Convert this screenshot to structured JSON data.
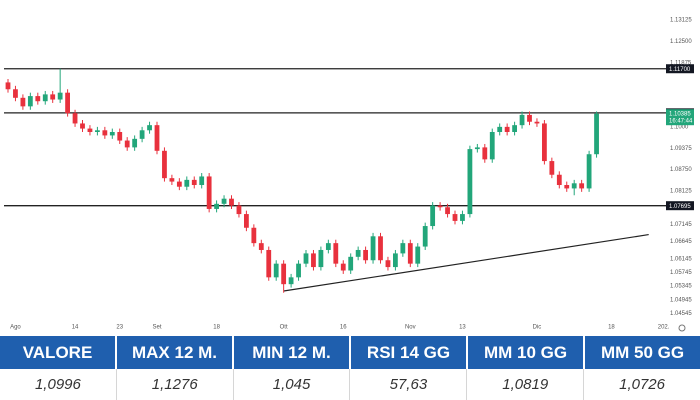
{
  "chart_data": {
    "type": "candlestick",
    "categories": [
      null,
      "Ago",
      null,
      null,
      null,
      null,
      null,
      null,
      null,
      "14",
      null,
      null,
      null,
      null,
      null,
      "23",
      null,
      null,
      null,
      null,
      "Set",
      null,
      null,
      null,
      null,
      null,
      null,
      null,
      "18",
      null,
      null,
      null,
      null,
      null,
      null,
      null,
      null,
      "Ott",
      null,
      null,
      null,
      null,
      null,
      null,
      null,
      "16",
      null,
      null,
      null,
      null,
      null,
      null,
      null,
      null,
      "Nov",
      null,
      null,
      null,
      null,
      null,
      null,
      "13",
      null,
      null,
      null,
      null,
      null,
      null,
      null,
      null,
      null,
      "Dic",
      null,
      null,
      null,
      null,
      null,
      null,
      null,
      null,
      null,
      "18",
      null,
      null,
      null,
      null,
      null,
      null,
      "202."
    ],
    "open": [
      1.113,
      1.111,
      1.1085,
      1.106,
      1.109,
      1.1075,
      1.1095,
      1.108,
      1.11,
      1.104,
      1.101,
      1.0995,
      1.0985,
      1.099,
      1.0975,
      1.0985,
      1.096,
      1.094,
      1.0965,
      1.099,
      1.1005,
      1.093,
      1.085,
      1.084,
      1.0825,
      1.0845,
      1.083,
      1.0855,
      1.076,
      1.0775,
      1.079,
      1.077,
      1.0745,
      1.0705,
      1.066,
      1.064,
      1.056,
      1.06,
      1.054,
      1.056,
      1.06,
      1.063,
      1.059,
      1.064,
      1.066,
      1.06,
      1.058,
      1.062,
      1.064,
      1.061,
      1.068,
      1.061,
      1.059,
      1.063,
      1.066,
      1.06,
      1.065,
      1.071,
      1.077,
      1.0765,
      1.0745,
      1.0725,
      1.0745,
      1.0935,
      1.094,
      1.0905,
      1.0985,
      1.1,
      1.0985,
      1.1005,
      1.1035,
      1.1015,
      1.101,
      1.09,
      1.086,
      1.083,
      1.082,
      1.0835,
      1.082,
      1.092,
      null,
      null,
      null,
      null,
      null,
      null,
      null,
      null,
      null
    ],
    "high": [
      1.114,
      1.112,
      1.1095,
      1.11,
      1.11,
      1.1105,
      1.1105,
      1.117,
      1.111,
      1.105,
      1.102,
      1.1005,
      1.1,
      1.1,
      1.0995,
      1.0995,
      1.097,
      1.0975,
      1.1,
      1.1015,
      1.1015,
      1.094,
      1.086,
      1.085,
      1.0855,
      1.0855,
      1.0865,
      1.0865,
      1.0785,
      1.08,
      1.08,
      1.078,
      1.0755,
      1.0715,
      1.067,
      1.065,
      1.061,
      1.061,
      1.057,
      1.061,
      1.064,
      1.064,
      1.065,
      1.067,
      1.067,
      1.061,
      1.063,
      1.065,
      1.065,
      1.069,
      1.069,
      1.062,
      1.064,
      1.067,
      1.067,
      1.066,
      1.072,
      1.078,
      1.078,
      1.0775,
      1.0755,
      1.0755,
      1.0945,
      1.095,
      1.095,
      1.0995,
      1.101,
      1.101,
      1.1015,
      1.1045,
      1.1045,
      1.1025,
      1.102,
      1.091,
      1.087,
      1.084,
      1.0845,
      1.0845,
      1.093,
      1.1045,
      null,
      null,
      null,
      null,
      null,
      null,
      null,
      null,
      null
    ],
    "low": [
      1.11,
      1.1075,
      1.105,
      1.105,
      1.1065,
      1.1065,
      1.107,
      1.107,
      1.103,
      1.1,
      1.0985,
      1.0975,
      1.0975,
      1.0965,
      1.0965,
      1.095,
      1.093,
      1.093,
      1.0955,
      1.098,
      1.092,
      1.084,
      1.083,
      1.0815,
      1.0815,
      1.082,
      1.082,
      1.075,
      1.075,
      1.0765,
      1.076,
      1.0735,
      1.0695,
      1.065,
      1.063,
      1.055,
      1.055,
      1.0515,
      1.053,
      1.055,
      1.059,
      1.058,
      1.058,
      1.063,
      1.059,
      1.057,
      1.057,
      1.061,
      1.06,
      1.06,
      1.06,
      1.058,
      1.058,
      1.062,
      1.059,
      1.059,
      1.064,
      1.07,
      1.0755,
      1.0735,
      1.0715,
      1.0715,
      1.0735,
      1.0925,
      1.0895,
      1.0895,
      1.0975,
      1.0975,
      1.0975,
      1.0995,
      1.1005,
      1.1,
      1.089,
      1.085,
      1.082,
      1.081,
      1.08,
      1.081,
      1.081,
      1.091,
      null,
      null,
      null,
      null,
      null,
      null,
      null,
      null,
      null
    ],
    "close": [
      1.111,
      1.1085,
      1.106,
      1.109,
      1.1075,
      1.1095,
      1.108,
      1.11,
      1.104,
      1.101,
      1.0995,
      1.0985,
      1.099,
      1.0975,
      1.0985,
      1.096,
      1.094,
      1.0965,
      1.099,
      1.1005,
      1.093,
      1.085,
      1.084,
      1.0825,
      1.0845,
      1.083,
      1.0855,
      1.076,
      1.0775,
      1.079,
      1.077,
      1.0745,
      1.0705,
      1.066,
      1.064,
      1.056,
      1.06,
      1.054,
      1.056,
      1.06,
      1.063,
      1.059,
      1.064,
      1.066,
      1.06,
      1.058,
      1.062,
      1.064,
      1.061,
      1.068,
      1.061,
      1.059,
      1.063,
      1.066,
      1.06,
      1.065,
      1.071,
      1.077,
      1.0765,
      1.0745,
      1.0725,
      1.0745,
      1.0935,
      1.094,
      1.0905,
      1.0985,
      1.1,
      1.0985,
      1.1005,
      1.1035,
      1.1015,
      1.101,
      1.09,
      1.086,
      1.083,
      1.082,
      1.0835,
      1.082,
      1.092,
      1.10385,
      null,
      null,
      null,
      null,
      null,
      null,
      null,
      null,
      null
    ],
    "up_color": "#22a67a",
    "down_color": "#e8313d",
    "ylim": [
      1.0406,
      1.1371
    ],
    "yticks": [
      1.13125,
      {
        "value": 1.125,
        "label": "1.12500"
      },
      1.11875,
      {
        "value": 1.1,
        "label": "1.1000"
      },
      1.09375,
      {
        "value": 1.0875,
        "label": "1.08750"
      },
      1.08125,
      1.07145,
      1.06645,
      1.06145,
      1.05745,
      1.05345,
      1.04945,
      1.04545
    ],
    "levels": [
      {
        "value": 1.117,
        "label": "1.11700"
      },
      {
        "value": 1.1041,
        "label": "1.10410"
      },
      {
        "value": 1.07695,
        "label": "1.07695"
      }
    ],
    "last_price": 1.10385,
    "last_time": "16:47:44",
    "trendline": {
      "from": 1.052,
      "to": 1.0685
    },
    "grid": false
  },
  "table": {
    "headers": [
      "VALORE",
      "MAX 12 M.",
      "MIN 12 M.",
      "RSI 14 GG",
      "MM 10 GG",
      "MM 50 GG"
    ],
    "values": [
      "1,0996",
      "1,1276",
      "1,045",
      "57,63",
      "1,0819",
      "1,0726"
    ]
  }
}
